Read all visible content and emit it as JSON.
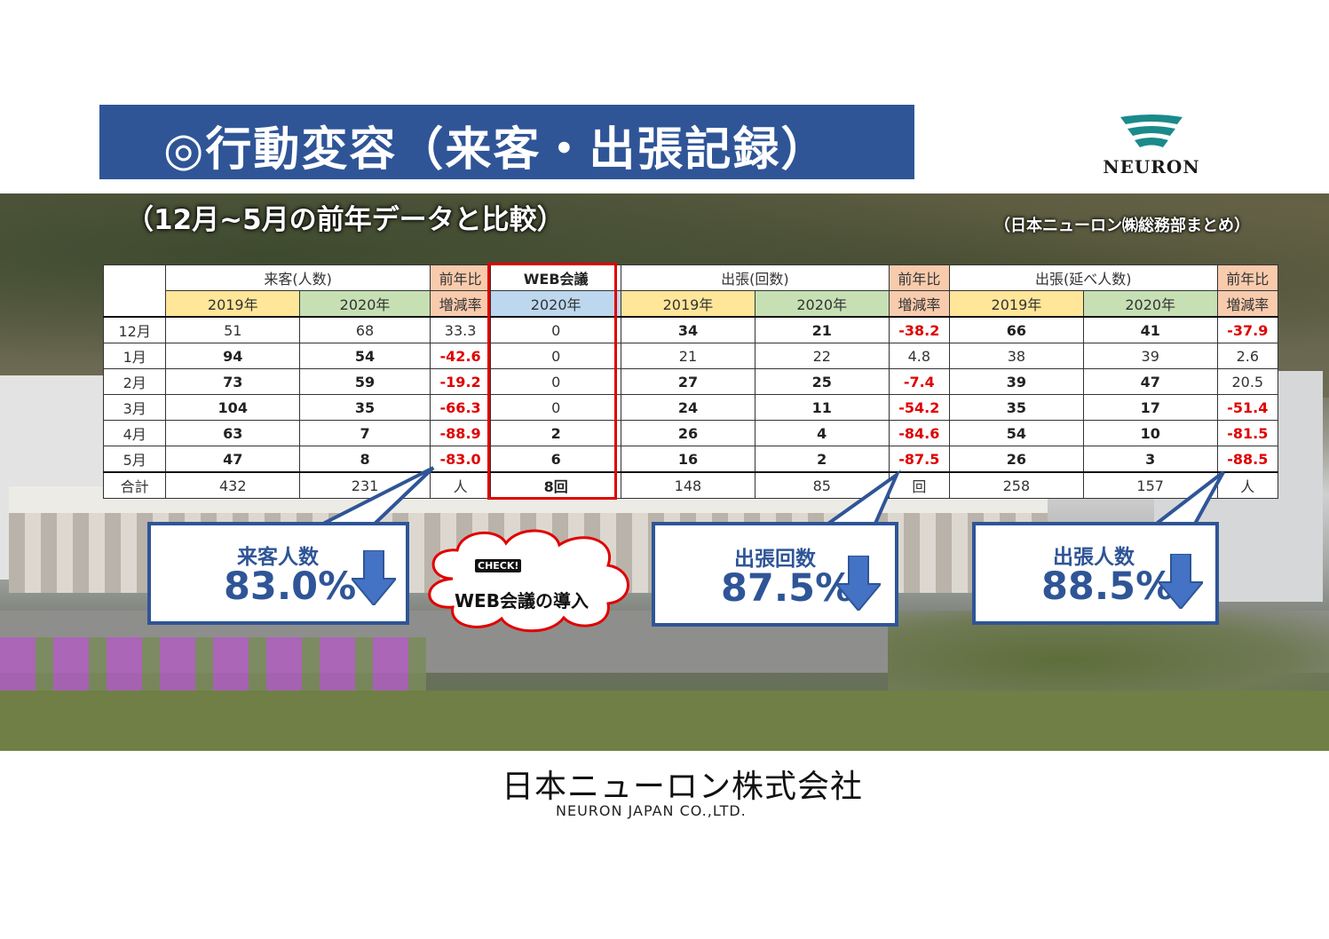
{
  "title": "◎行動変容（来客・出張記録）",
  "subtitle": "（12月~5月の前年データと比較）",
  "attribution": "（日本ニューロン㈱総務部まとめ）",
  "logo_text": "NEURON",
  "footer": {
    "company_jp": "日本ニューロン株式会社",
    "company_en": "NEURON JAPAN CO.,LTD."
  },
  "table": {
    "groups": {
      "visitors": "来客(人数)",
      "rate": "前年比",
      "web": "WEB会議",
      "trips": "出張(回数)",
      "trip_people": "出張(延べ人数)"
    },
    "sub": {
      "y2019": "2019年",
      "y2020": "2020年",
      "rate": "増減率"
    },
    "rows": [
      {
        "month": "12月",
        "v19": "51",
        "v20": "68",
        "vr": "33.3",
        "web": "0",
        "t19": "34",
        "t20": "21",
        "tr": "-38.2",
        "p19": "66",
        "p20": "41",
        "pr": "-37.9"
      },
      {
        "month": "1月",
        "v19": "94",
        "v20": "54",
        "vr": "-42.6",
        "web": "0",
        "t19": "21",
        "t20": "22",
        "tr": "4.8",
        "p19": "38",
        "p20": "39",
        "pr": "2.6"
      },
      {
        "month": "2月",
        "v19": "73",
        "v20": "59",
        "vr": "-19.2",
        "web": "0",
        "t19": "27",
        "t20": "25",
        "tr": "-7.4",
        "p19": "39",
        "p20": "47",
        "pr": "20.5"
      },
      {
        "month": "3月",
        "v19": "104",
        "v20": "35",
        "vr": "-66.3",
        "web": "0",
        "t19": "24",
        "t20": "11",
        "tr": "-54.2",
        "p19": "35",
        "p20": "17",
        "pr": "-51.4"
      },
      {
        "month": "4月",
        "v19": "63",
        "v20": "7",
        "vr": "-88.9",
        "web": "2",
        "t19": "26",
        "t20": "4",
        "tr": "-84.6",
        "p19": "54",
        "p20": "10",
        "pr": "-81.5"
      },
      {
        "month": "5月",
        "v19": "47",
        "v20": "8",
        "vr": "-83.0",
        "web": "6",
        "t19": "16",
        "t20": "2",
        "tr": "-87.5",
        "p19": "26",
        "p20": "3",
        "pr": "-88.5"
      }
    ],
    "total": {
      "month": "合計",
      "v19": "432",
      "v20": "231",
      "vr": "人",
      "web": "8回",
      "t19": "148",
      "t20": "85",
      "tr": "回",
      "p19": "258",
      "p20": "157",
      "pr": "人"
    }
  },
  "callouts": [
    {
      "label": "来客人数",
      "value": "83.0%"
    },
    {
      "label": "出張回数",
      "value": "87.5%"
    },
    {
      "label": "出張人数",
      "value": "88.5%"
    }
  ],
  "cloud": {
    "badge": "CHECK!",
    "text": "WEB会議の導入"
  },
  "colors": {
    "banner": "#2f5597",
    "negative": "#e00000",
    "web_frame": "#e00000"
  }
}
